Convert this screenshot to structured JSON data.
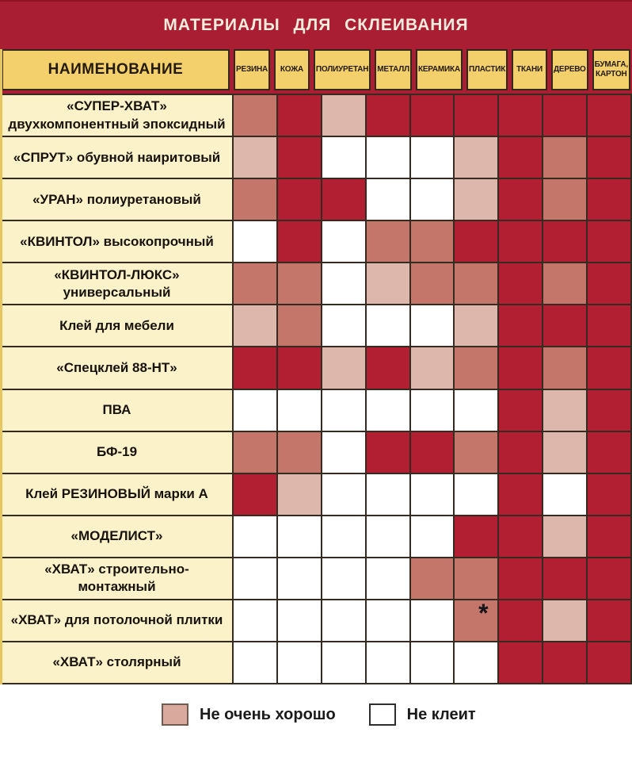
{
  "title": "МАТЕРИАЛЫ ДЛЯ СКЛЕИВАНИЯ",
  "name_column_header": "НАИМЕНОВАНИЕ",
  "footnote_marker": "*",
  "chart_data": {
    "type": "table",
    "columns": [
      "РЕЗИНА",
      "КОЖА",
      "ПОЛИУРЕТАН",
      "МЕТАЛЛ",
      "КЕРАМИКА",
      "ПЛАСТИК",
      "ТКАНИ",
      "ДЕРЕВО",
      "БУМАГА,\nКАРТОН"
    ],
    "rows": [
      {
        "name": "«СУПЕР-ХВАТ»\nдвухкомпонентный эпоксидный",
        "cells": [
          "rose",
          "red",
          "pink",
          "red",
          "red",
          "red",
          "red",
          "red",
          "red"
        ]
      },
      {
        "name": "«СПРУТ» обувной наиритовый",
        "cells": [
          "pink",
          "red",
          "white",
          "white",
          "white",
          "pink",
          "red",
          "rose",
          "red"
        ]
      },
      {
        "name": "«УРАН» полиуретановый",
        "cells": [
          "rose",
          "red",
          "red",
          "white",
          "white",
          "pink",
          "red",
          "rose",
          "red"
        ]
      },
      {
        "name": "«КВИНТОЛ» высокопрочный",
        "cells": [
          "white",
          "red",
          "white",
          "rose",
          "rose",
          "red",
          "red",
          "red",
          "red"
        ]
      },
      {
        "name": "«КВИНТОЛ-ЛЮКС» универсальный",
        "cells": [
          "rose",
          "rose",
          "white",
          "pink",
          "rose",
          "rose",
          "red",
          "rose",
          "red"
        ]
      },
      {
        "name": "Клей для мебели",
        "cells": [
          "pink",
          "rose",
          "white",
          "white",
          "white",
          "pink",
          "red",
          "red",
          "red"
        ]
      },
      {
        "name": "«Спецклей 88-НТ»",
        "cells": [
          "red",
          "red",
          "pink",
          "red",
          "pink",
          "rose",
          "red",
          "rose",
          "red"
        ]
      },
      {
        "name": "ПВА",
        "cells": [
          "white",
          "white",
          "white",
          "white",
          "white",
          "white",
          "red",
          "pink",
          "red"
        ]
      },
      {
        "name": "БФ-19",
        "cells": [
          "rose",
          "rose",
          "white",
          "red",
          "red",
          "rose",
          "red",
          "pink",
          "red"
        ]
      },
      {
        "name": "Клей РЕЗИНОВЫЙ марки А",
        "cells": [
          "red",
          "pink",
          "white",
          "white",
          "white",
          "white",
          "red",
          "white",
          "red"
        ]
      },
      {
        "name": "«МОДЕЛИСТ»",
        "cells": [
          "white",
          "white",
          "white",
          "white",
          "white",
          "red",
          "red",
          "pink",
          "red"
        ]
      },
      {
        "name": "«ХВАТ» строительно-монтажный",
        "cells": [
          "white",
          "white",
          "white",
          "white",
          "rose",
          "rose",
          "red",
          "red",
          "red"
        ]
      },
      {
        "name": "«ХВАТ» для потолочной плитки",
        "cells": [
          "white",
          "white",
          "white",
          "white",
          "white",
          "rose*",
          "red",
          "pink",
          "red"
        ]
      },
      {
        "name": "«ХВАТ» столярный",
        "cells": [
          "white",
          "white",
          "white",
          "white",
          "white",
          "white",
          "red",
          "red",
          "red"
        ]
      }
    ]
  },
  "legend": [
    {
      "swatch": "pink",
      "label": "Не очень хорошо"
    },
    {
      "swatch": "white",
      "label": "Не клеит"
    }
  ],
  "colors": {
    "banner_red": "#A91E33",
    "header_gold": "#F3D06C",
    "row_label_cream": "#FBF2CA",
    "cell_values": {
      "red": "#B21F32",
      "rose": "#C4766A",
      "pink": "#DDB6AC",
      "white": "#FFFFFF"
    }
  }
}
